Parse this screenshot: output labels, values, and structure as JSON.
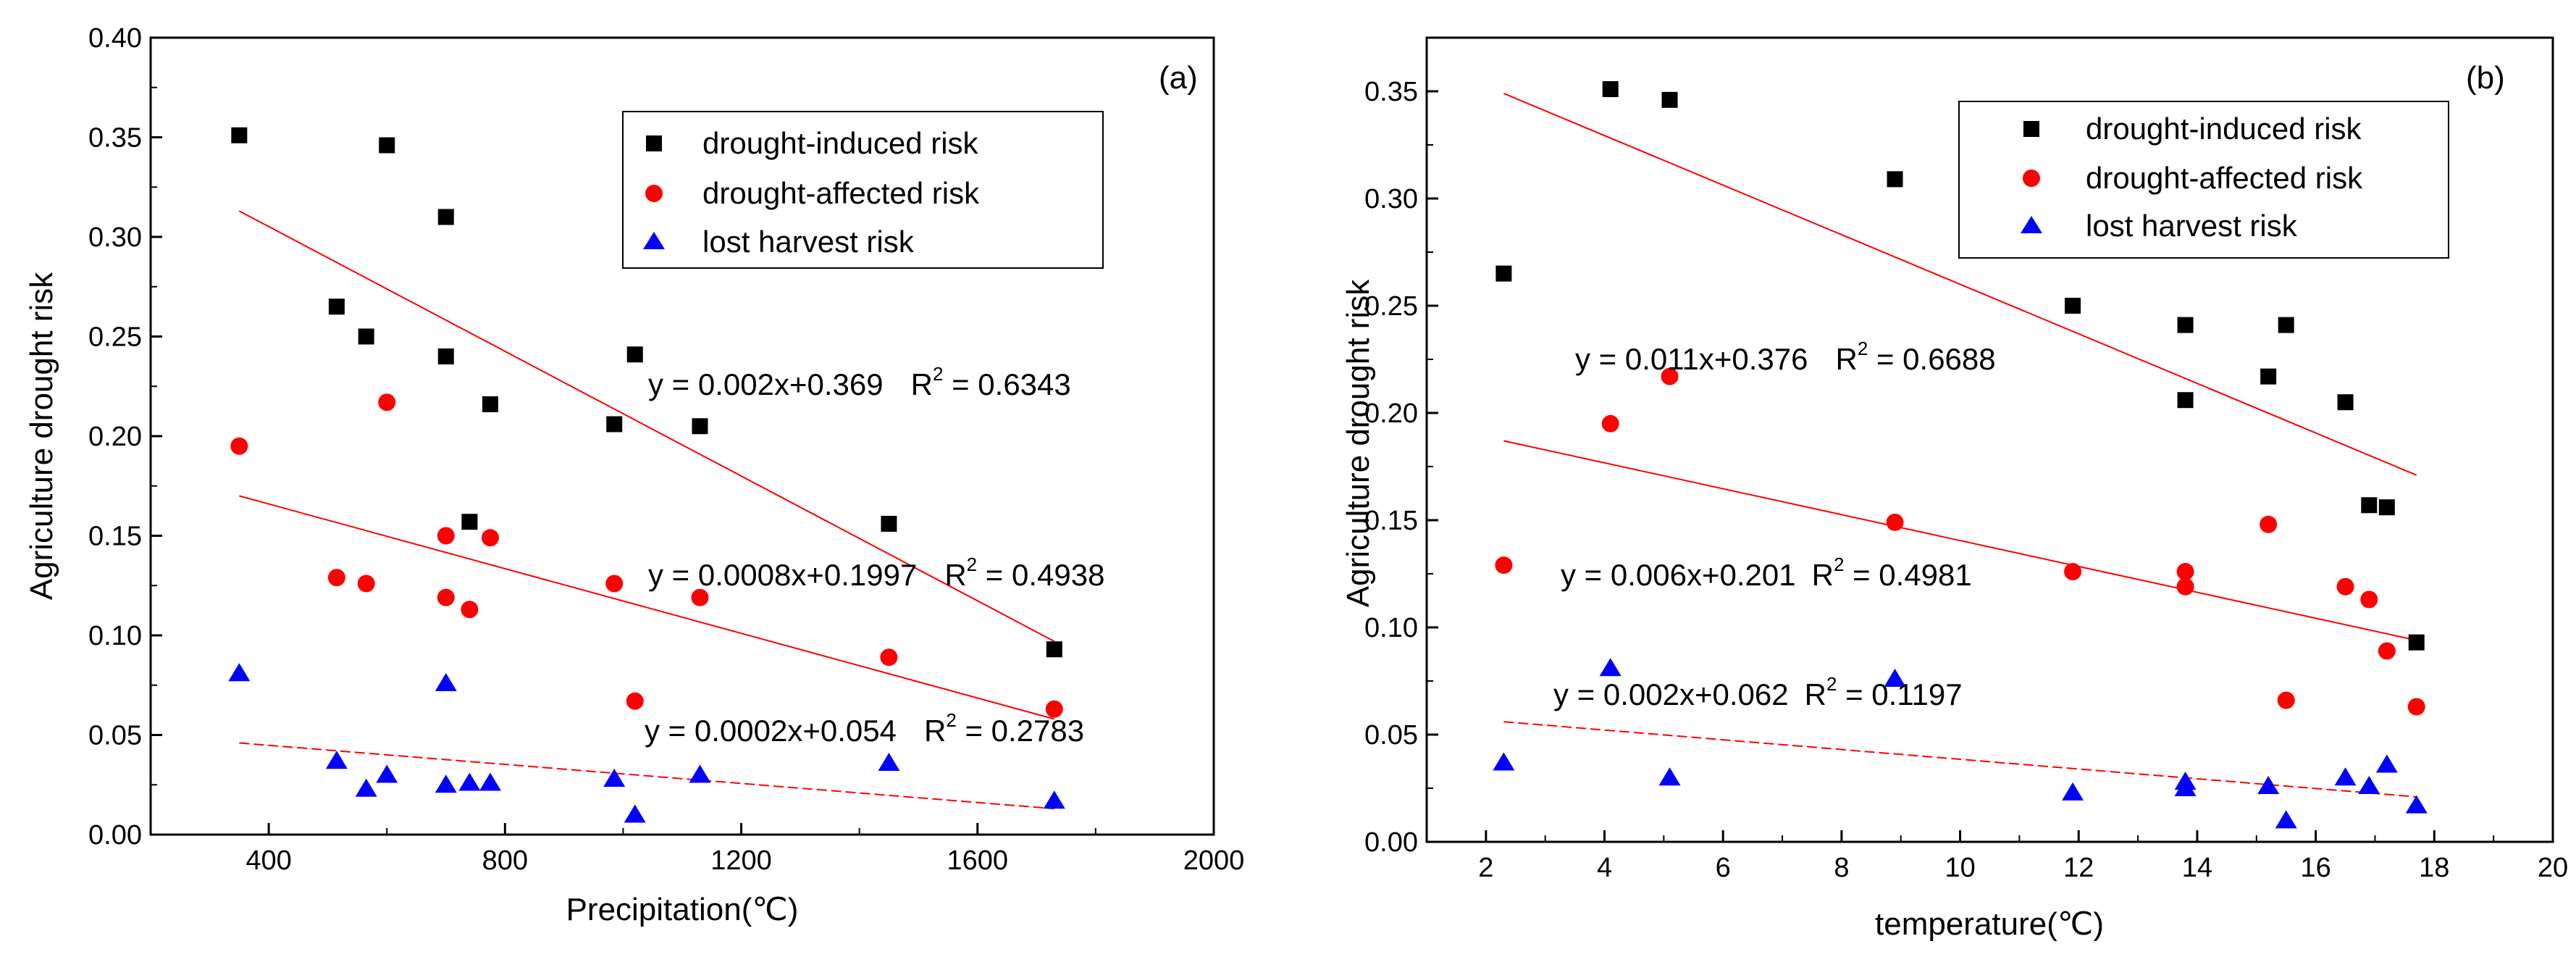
{
  "chart_data": [
    {
      "type": "scatter",
      "panel_label": "(a)",
      "xlabel": "Precipitation(℃)",
      "ylabel": "Agriculture drought risk",
      "xlim": [
        200,
        2000
      ],
      "ylim": [
        0,
        0.4
      ],
      "xticks": [
        400,
        800,
        1200,
        1600,
        2000
      ],
      "yticks": [
        0.0,
        0.05,
        0.1,
        0.15,
        0.2,
        0.25,
        0.3,
        0.35,
        0.4
      ],
      "ytick_labels": [
        "0.00",
        "0.05",
        "0.10",
        "0.15",
        "0.20",
        "0.25",
        "0.30",
        "0.35",
        "0.40"
      ],
      "legend": [
        "drought-induced risk",
        "drought-affected risk",
        "lost harvest risk"
      ],
      "series": [
        {
          "name": "drought-induced risk",
          "marker": "square",
          "color": "#000000",
          "x": [
            350,
            515,
            565,
            600,
            700,
            700,
            740,
            775,
            985,
            1020,
            1130,
            1450,
            1730
          ],
          "y": [
            0.351,
            0.265,
            0.25,
            0.346,
            0.31,
            0.24,
            0.157,
            0.216,
            0.206,
            0.241,
            0.205,
            0.156,
            0.093
          ],
          "fit": {
            "x": [
              350,
              1730
            ],
            "y": [
              0.313,
              0.097
            ],
            "equation": "y = 0.002x+0.369",
            "r2_prefix": "R",
            "r2_exp": "2",
            "r2_value": " = 0.6343"
          }
        },
        {
          "name": "drought-affected risk",
          "marker": "circle",
          "color": "#ff0000",
          "x": [
            350,
            515,
            565,
            600,
            700,
            700,
            740,
            775,
            985,
            1020,
            1130,
            1450,
            1730
          ],
          "y": [
            0.195,
            0.129,
            0.126,
            0.217,
            0.15,
            0.119,
            0.113,
            0.149,
            0.126,
            0.067,
            0.119,
            0.089,
            0.063
          ],
          "fit": {
            "x": [
              350,
              1730
            ],
            "y": [
              0.17,
              0.058
            ],
            "equation": "y = 0.0008x+0.1997",
            "r2_prefix": "R",
            "r2_exp": "2",
            "r2_value": " = 0.4938"
          }
        },
        {
          "name": "lost harvest risk",
          "marker": "triangle",
          "color": "#0000ff",
          "x": [
            350,
            515,
            565,
            600,
            700,
            700,
            740,
            775,
            985,
            1020,
            1130,
            1450,
            1730
          ],
          "y": [
            0.081,
            0.037,
            0.023,
            0.03,
            0.076,
            0.025,
            0.026,
            0.026,
            0.028,
            0.01,
            0.03,
            0.036,
            0.017
          ],
          "fit": {
            "x": [
              350,
              1730
            ],
            "y": [
              0.046,
              0.013
            ],
            "equation": "y = 0.0002x+0.054",
            "r2_prefix": "R",
            "r2_exp": "2",
            "r2_value": " = 0.2783"
          }
        }
      ]
    },
    {
      "type": "scatter",
      "panel_label": "(b)",
      "xlabel": "temperature(℃)",
      "ylabel": "Agriculture drought risk",
      "xlim": [
        1,
        20
      ],
      "ylim": [
        0,
        0.375
      ],
      "xticks": [
        2,
        4,
        6,
        8,
        10,
        12,
        14,
        16,
        18,
        20
      ],
      "yticks": [
        0.0,
        0.05,
        0.1,
        0.15,
        0.2,
        0.25,
        0.3,
        0.35
      ],
      "ytick_labels": [
        "0.00",
        "0.05",
        "0.10",
        "0.15",
        "0.20",
        "0.25",
        "0.30",
        "0.35"
      ],
      "legend": [
        "drought-induced risk",
        "drought-affected risk",
        "lost harvest risk"
      ],
      "series": [
        {
          "name": "drought-induced risk",
          "marker": "square",
          "color": "#000000",
          "x": [
            2.3,
            4.1,
            5.1,
            8.9,
            11.9,
            13.8,
            13.8,
            15.2,
            15.5,
            16.5,
            16.9,
            17.2,
            17.7
          ],
          "y": [
            0.265,
            0.351,
            0.346,
            0.309,
            0.25,
            0.241,
            0.206,
            0.217,
            0.241,
            0.205,
            0.157,
            0.156,
            0.093
          ],
          "fit": {
            "x": [
              2.3,
              17.7
            ],
            "y": [
              0.349,
              0.171
            ],
            "equation": "y = 0.011x+0.376",
            "r2_prefix": "R",
            "r2_exp": "2",
            "r2_value": " = 0.6688"
          }
        },
        {
          "name": "drought-affected risk",
          "marker": "circle",
          "color": "#ff0000",
          "x": [
            2.3,
            4.1,
            5.1,
            8.9,
            11.9,
            13.8,
            13.8,
            15.2,
            15.5,
            16.5,
            16.9,
            17.2,
            17.7
          ],
          "y": [
            0.129,
            0.195,
            0.217,
            0.149,
            0.126,
            0.126,
            0.119,
            0.148,
            0.066,
            0.119,
            0.113,
            0.089,
            0.063
          ],
          "fit": {
            "x": [
              2.3,
              17.7
            ],
            "y": [
              0.187,
              0.094
            ],
            "equation": "y = 0.006x+0.201",
            "r2_prefix": "R",
            "r2_exp": "2",
            "r2_value": " = 0.4981"
          }
        },
        {
          "name": "lost harvest risk",
          "marker": "triangle",
          "color": "#0000ff",
          "x": [
            2.3,
            4.1,
            5.1,
            8.9,
            11.9,
            13.8,
            13.8,
            15.2,
            15.5,
            16.5,
            16.9,
            17.2,
            17.7
          ],
          "y": [
            0.037,
            0.081,
            0.03,
            0.076,
            0.023,
            0.028,
            0.025,
            0.026,
            0.01,
            0.03,
            0.026,
            0.036,
            0.017
          ],
          "fit": {
            "x": [
              2.3,
              17.7
            ],
            "y": [
              0.056,
              0.021
            ],
            "equation": "y = 0.002x+0.062",
            "r2_prefix": "R",
            "r2_exp": "2",
            "r2_value": " = 0.1197"
          }
        }
      ]
    }
  ]
}
